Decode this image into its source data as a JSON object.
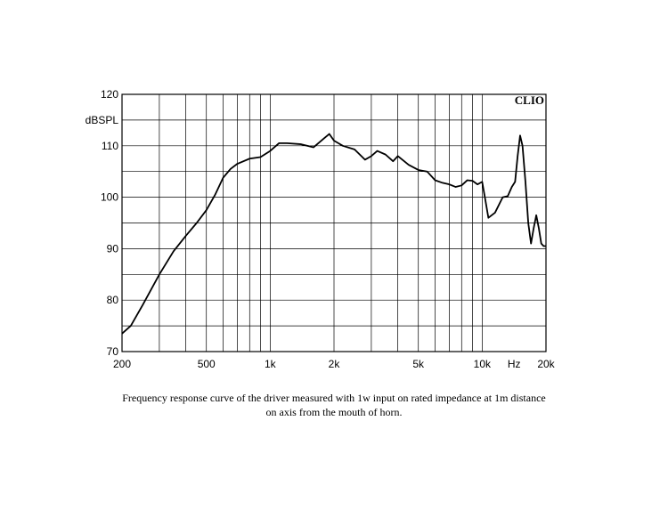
{
  "chart_data": {
    "type": "line",
    "x_scale": "log",
    "y_label": "dBSPL",
    "x_unit": "Hz",
    "brand": "CLIO",
    "caption": [
      "Frequency response curve of the driver measured with 1w input on rated impedance at 1m distance",
      "on axis from the mouth of horn."
    ],
    "xlim": [
      200,
      20000
    ],
    "ylim": [
      70,
      120
    ],
    "xticks": [
      200,
      500,
      {
        "value": 1000,
        "label": "1k"
      },
      {
        "value": 2000,
        "label": "2k"
      },
      {
        "value": 5000,
        "label": "5k"
      },
      {
        "value": 10000,
        "label": "10k"
      },
      {
        "value": 20000,
        "label": "20k"
      }
    ],
    "yticks": [
      70,
      80,
      90,
      100,
      110,
      120
    ],
    "x_minor_grid": [
      300,
      400,
      600,
      700,
      800,
      900,
      3000,
      4000,
      6000,
      7000,
      8000,
      9000
    ],
    "y_minor_grid": [
      75,
      85,
      95,
      105,
      115
    ],
    "grid": true,
    "x": [
      200,
      220,
      250,
      300,
      350,
      400,
      450,
      500,
      550,
      600,
      650,
      700,
      800,
      900,
      1000,
      1100,
      1200,
      1400,
      1600,
      1800,
      1900,
      2000,
      2200,
      2500,
      2800,
      3000,
      3200,
      3500,
      3800,
      4000,
      4500,
      5000,
      5500,
      6000,
      6500,
      7000,
      7500,
      8000,
      8500,
      9000,
      9500,
      10000,
      10300,
      10700,
      11500,
      12500,
      13200,
      13800,
      14300,
      14700,
      15100,
      15500,
      16000,
      16500,
      17000,
      17500,
      18000,
      18500,
      19000,
      19500,
      20000
    ],
    "series": [
      {
        "color": "#000000",
        "values": [
          73.5,
          75,
          79,
          85,
          89.5,
          92.5,
          95,
          97.5,
          100.5,
          103.8,
          105.5,
          106.5,
          107.5,
          107.8,
          109,
          110.5,
          110.5,
          110.3,
          109.7,
          111.5,
          112.3,
          111,
          110,
          109.3,
          107.3,
          108,
          109,
          108.3,
          107,
          108,
          106.3,
          105.3,
          105,
          103.3,
          102.8,
          102.5,
          102,
          102.3,
          103.3,
          103.2,
          102.5,
          103,
          100,
          96,
          97,
          100,
          100.2,
          102,
          103,
          108,
          112,
          110,
          103,
          95,
          91,
          94,
          96.5,
          94,
          91,
          90.5,
          90.5
        ]
      }
    ]
  }
}
